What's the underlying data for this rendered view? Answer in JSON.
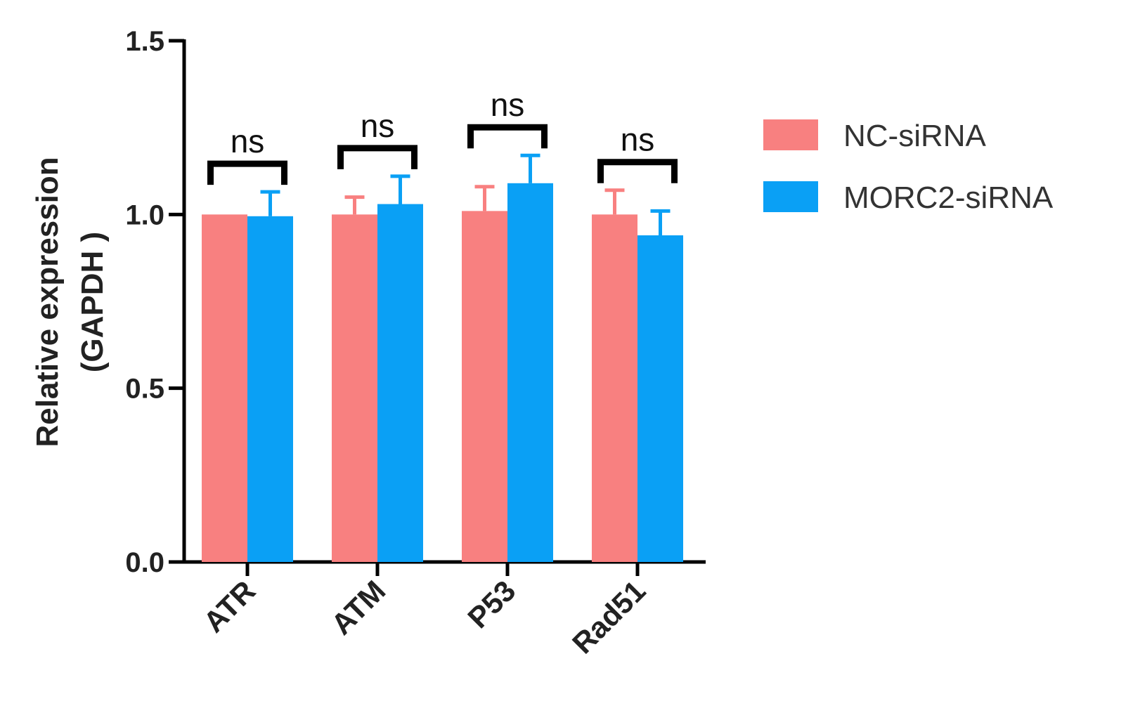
{
  "chart_data": {
    "type": "bar",
    "title": "",
    "xlabel": "",
    "ylabel_lines": [
      "Relative expression",
      "(GAPDH )"
    ],
    "ylim": [
      0,
      1.5
    ],
    "yticks": [
      "0.0",
      "0.5",
      "1.0",
      "1.5"
    ],
    "ytick_values": [
      0,
      0.5,
      1.0,
      1.5
    ],
    "categories": [
      "ATR",
      "ATM",
      "P53",
      "Rad51"
    ],
    "series": [
      {
        "name": "NC-siRNA",
        "color": "#f88080",
        "values": [
          1.0,
          1.0,
          1.01,
          1.0
        ],
        "errors": [
          0.0,
          0.05,
          0.07,
          0.07
        ]
      },
      {
        "name": "MORC2-siRNA",
        "color": "#0aa0f5",
        "values": [
          0.995,
          1.03,
          1.09,
          0.94
        ],
        "errors": [
          0.07,
          0.08,
          0.08,
          0.07
        ]
      }
    ],
    "significance": [
      "ns",
      "ns",
      "ns",
      "ns"
    ],
    "grid": false,
    "legend_position": "top-right"
  }
}
